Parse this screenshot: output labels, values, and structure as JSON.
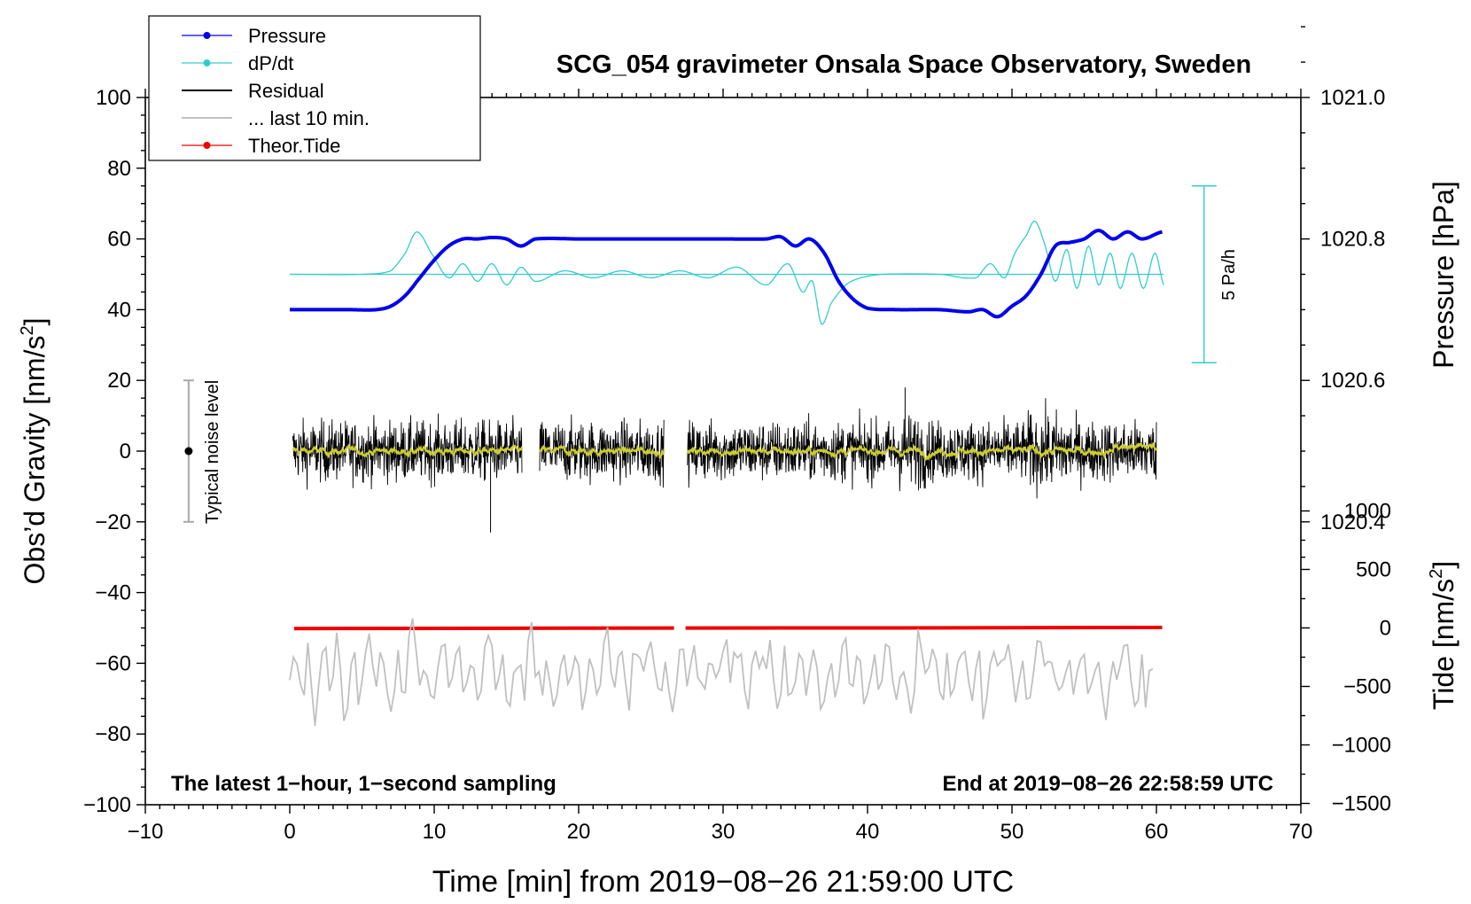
{
  "chart_data": {
    "type": "line",
    "title": "SCG_054 gravimeter Onsala Space Observatory, Sweden",
    "xlabel": "Time [min] from 2019−08−26 21:59:00 UTC",
    "xlim": [
      -10,
      70
    ],
    "x_ticks": [
      "−10",
      "0",
      "10",
      "20",
      "30",
      "40",
      "50",
      "60",
      "70"
    ],
    "left_axis": {
      "label_prefix": "Obs’d Gravity [nm/s",
      "label_sup": "2",
      "label_suffix": "]",
      "ylim": [
        -100,
        100
      ],
      "ticks": [
        "100",
        "80",
        "60",
        "40",
        "20",
        "0",
        "−20",
        "−40",
        "−60",
        "−80",
        "−100"
      ]
    },
    "pressure_axis": {
      "label": "Pressure [hPa]",
      "ticks": [
        "1021.0",
        "1020.8",
        "1020.6",
        "1020.4"
      ],
      "tick_values": [
        1021.0,
        1020.8,
        1020.6,
        1020.4
      ]
    },
    "tide_axis": {
      "label_prefix": "Tide [nm/s",
      "label_sup": "2",
      "label_suffix": "]",
      "ticks": [
        "1000",
        "500",
        "0",
        "−500",
        "−1000",
        "−1500"
      ],
      "tick_values": [
        1000,
        500,
        0,
        -500,
        -1000,
        -1500
      ]
    },
    "legend": {
      "placement": "top-left",
      "entries": [
        {
          "label": "Pressure",
          "color": "#0000ee",
          "marker": "dot"
        },
        {
          "label": "dP/dt",
          "color": "#33cccc",
          "marker": "dot"
        },
        {
          "label": "Residual",
          "color": "#000000",
          "marker": "none"
        },
        {
          "label": "... last 10 min.",
          "color": "#c0c0c0",
          "marker": "none"
        },
        {
          "label": "Theor.Tide",
          "color": "#ee0000",
          "marker": "dot"
        }
      ]
    },
    "annotations": {
      "noise_label": "Typical noise level",
      "noise_range": [
        -20,
        20
      ],
      "noise_x": -7,
      "rate_label": "5 Pa/h",
      "bottom_left": "The latest 1−hour, 1−second sampling",
      "bottom_right": "End at 2019−08−26 22:58:59 UTC"
    },
    "colors": {
      "pressure": "#0000ee",
      "dpdt": "#33cccc",
      "residual": "#000000",
      "smoothed": "#cccc33",
      "last10": "#c0c0c0",
      "tide": "#ee0000"
    },
    "series": [
      {
        "name": "Pressure",
        "unit": "hPa",
        "x": [
          0,
          2,
          4,
          6,
          7,
          8,
          9,
          10,
          11,
          12,
          13,
          14,
          15,
          16,
          17,
          20,
          25,
          30,
          33,
          34,
          35,
          36,
          37,
          38,
          39,
          40,
          42,
          45,
          47,
          48,
          49,
          50,
          51,
          52,
          53,
          54,
          55,
          56,
          57,
          58,
          59,
          60.4
        ],
        "values": [
          1020.7,
          1020.7,
          1020.7,
          1020.7,
          1020.705,
          1020.72,
          1020.745,
          1020.77,
          1020.79,
          1020.8,
          1020.8,
          1020.802,
          1020.8,
          1020.79,
          1020.8,
          1020.8,
          1020.8,
          1020.8,
          1020.8,
          1020.803,
          1020.79,
          1020.8,
          1020.78,
          1020.74,
          1020.715,
          1020.702,
          1020.7,
          1020.7,
          1020.697,
          1020.7,
          1020.69,
          1020.705,
          1020.72,
          1020.75,
          1020.79,
          1020.795,
          1020.8,
          1020.812,
          1020.8,
          1020.81,
          1020.8,
          1020.81
        ]
      },
      {
        "name": "dP/dt",
        "unit": "nm/s2 (scaled)",
        "baseline": 50,
        "x": [
          0,
          5,
          7,
          8,
          8.8,
          9.8,
          11,
          12,
          13,
          14,
          15,
          16,
          17,
          19,
          21,
          23,
          25,
          27,
          29,
          31,
          33,
          34.5,
          35.5,
          36.2,
          36.8,
          37.5,
          38.5,
          39.5,
          41,
          45,
          47.5,
          48.5,
          49.5,
          50.2,
          51,
          51.6,
          52.3,
          53,
          53.8,
          54.5,
          55.3,
          56,
          56.8,
          57.5,
          58.3,
          59.1,
          59.9,
          60.5
        ],
        "values": [
          50,
          50,
          51,
          56,
          62,
          56,
          49,
          53,
          48,
          53,
          47,
          52,
          48,
          51,
          49,
          51,
          49,
          51,
          49,
          52,
          47,
          53,
          45,
          48,
          36,
          42,
          47,
          49,
          50,
          50,
          49,
          53,
          49,
          56,
          61,
          65,
          58,
          48,
          57,
          46,
          58,
          47,
          56,
          46,
          56,
          46,
          56,
          47
        ]
      },
      {
        "name": "Residual",
        "unit": "nm/s2",
        "segments": [
          [
            0.2,
            16.1
          ],
          [
            17.3,
            25.9
          ],
          [
            27.5,
            60
          ]
        ],
        "typical_range": [
          -15,
          15
        ],
        "notable_min": -23,
        "notable_max": 18
      },
      {
        "name": "... last 10 min.",
        "unit": "nm/s2",
        "center": -63,
        "range": [
          -80,
          -45
        ]
      },
      {
        "name": "Theor.Tide",
        "unit": "nm/s2",
        "x": [
          0.3,
          15,
          26.6,
          27.4,
          40,
          60.4
        ],
        "values": [
          -5,
          -3,
          -1,
          -1,
          0,
          4
        ],
        "gap": [
          26.6,
          27.4
        ]
      }
    ]
  }
}
